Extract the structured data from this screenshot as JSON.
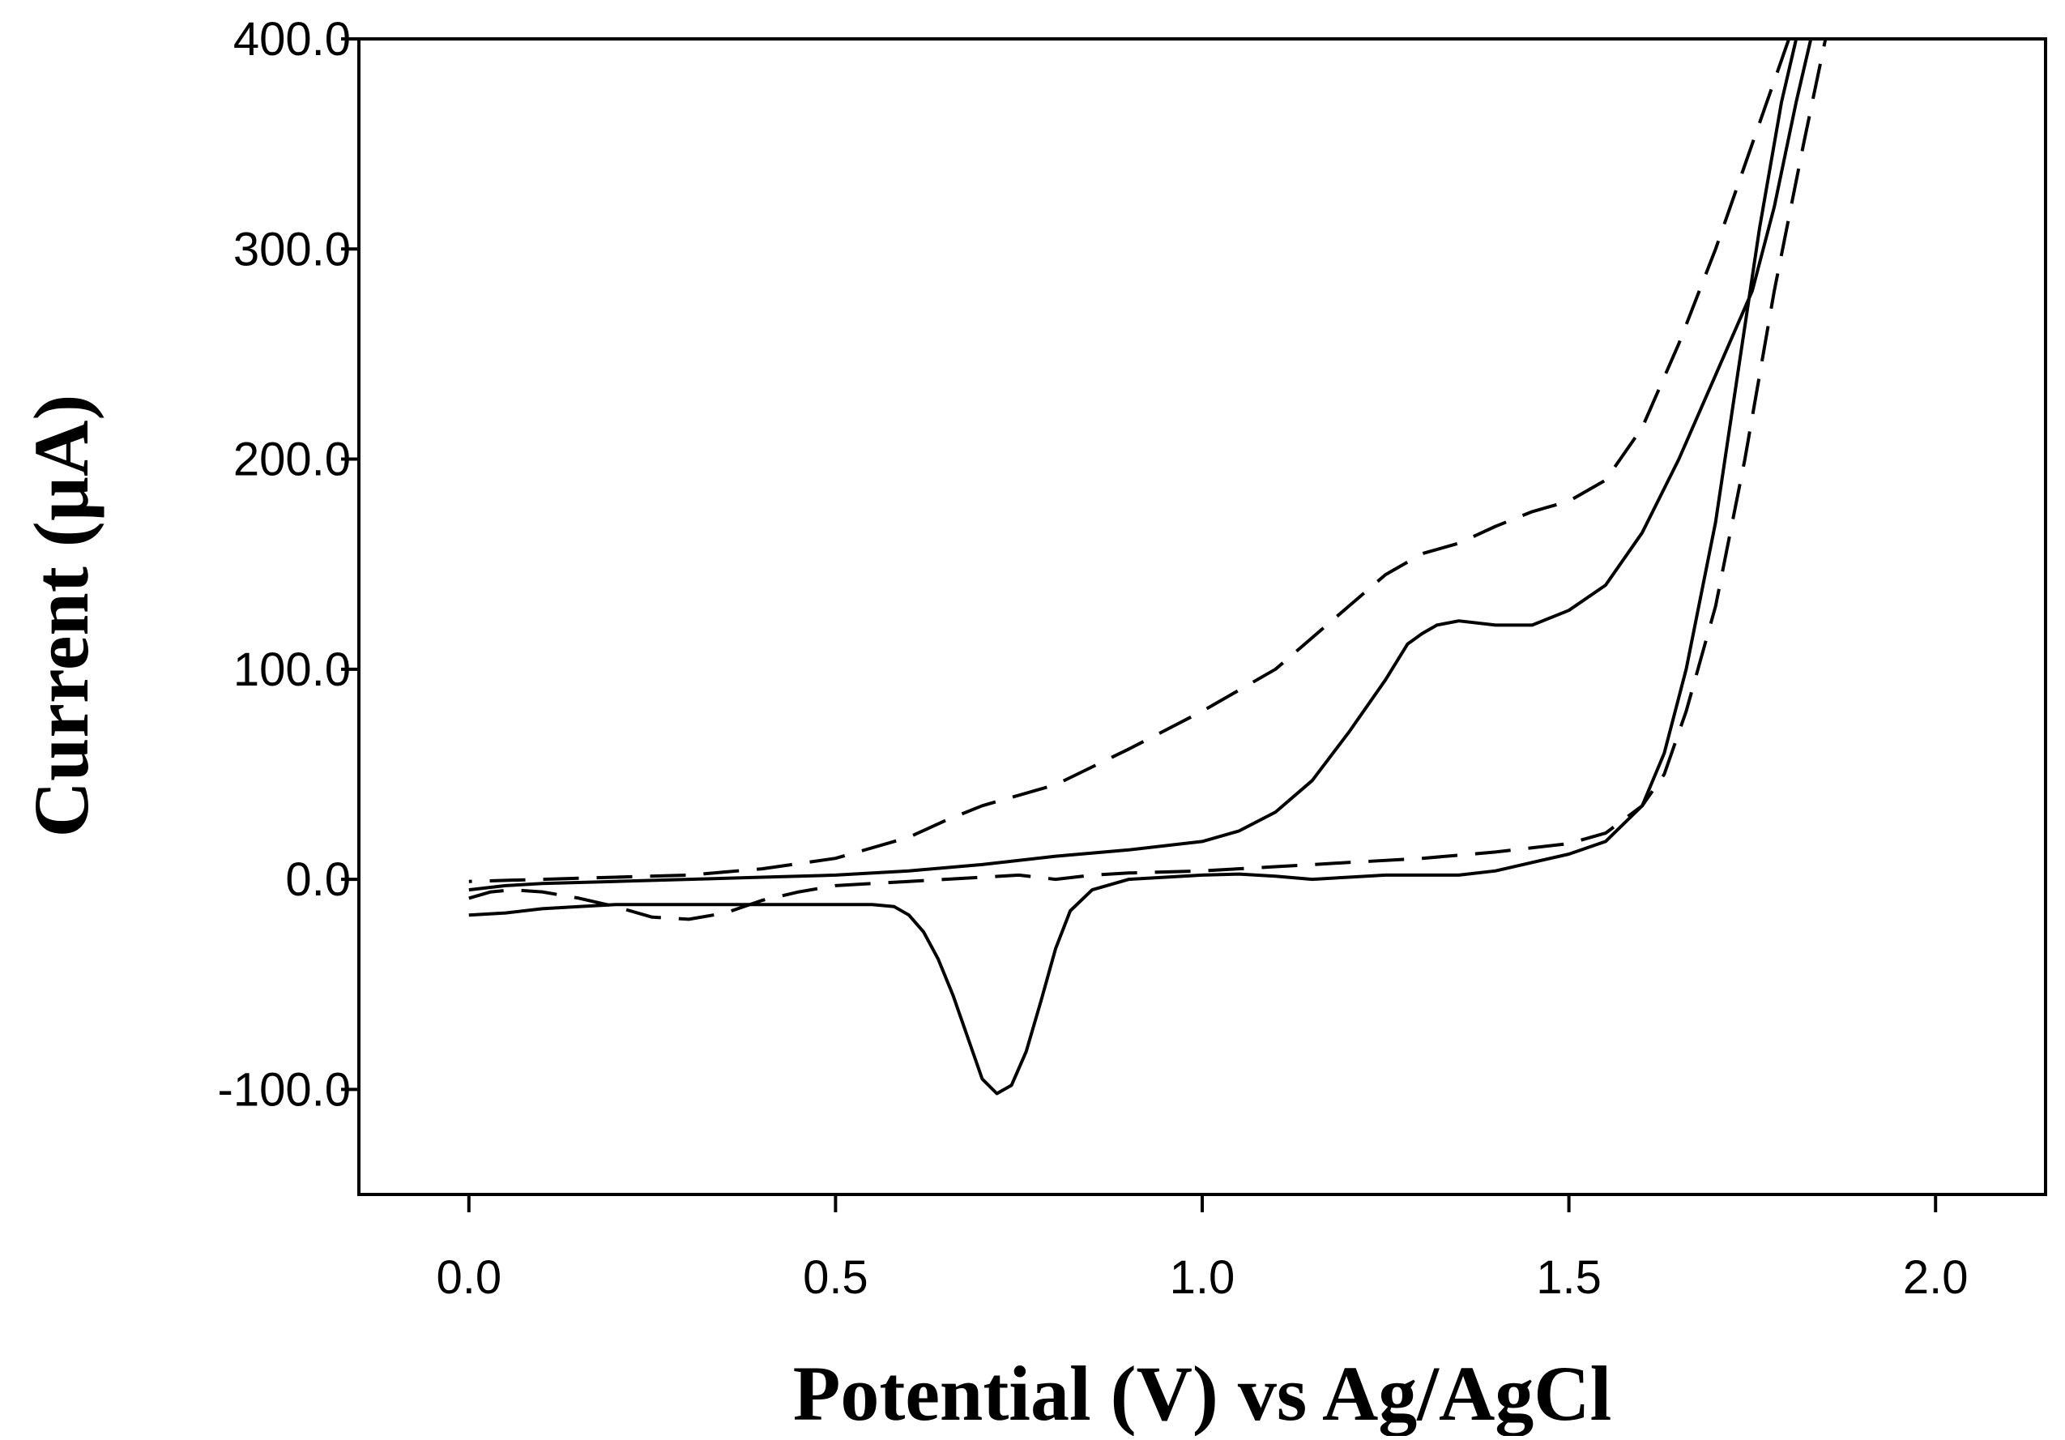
{
  "chart_data": {
    "type": "line",
    "title": "",
    "xlabel": "Potential (V) vs Ag/AgCl",
    "ylabel": "Current (µA)",
    "xlim": [
      -0.15,
      2.15
    ],
    "ylim": [
      -150,
      400
    ],
    "x_ticks": [
      0.0,
      0.5,
      1.0,
      1.5,
      2.0
    ],
    "x_tick_labels": [
      "0.0",
      "0.5",
      "1.0",
      "1.5",
      "2.0"
    ],
    "y_ticks": [
      -100,
      0,
      100,
      200,
      300,
      400
    ],
    "y_tick_labels": [
      "-100.0",
      "0.0",
      "100.0",
      "200.0",
      "300.0",
      "400.0"
    ],
    "grid": false,
    "legend": "none",
    "series": [
      {
        "name": "solid",
        "style": "solid",
        "color": "#000000",
        "points": [
          [
            0.0,
            -17
          ],
          [
            0.05,
            -16
          ],
          [
            0.1,
            -14
          ],
          [
            0.15,
            -13
          ],
          [
            0.2,
            -12
          ],
          [
            0.3,
            -12
          ],
          [
            0.4,
            -12
          ],
          [
            0.5,
            -12
          ],
          [
            0.55,
            -12
          ],
          [
            0.58,
            -13
          ],
          [
            0.6,
            -17
          ],
          [
            0.62,
            -25
          ],
          [
            0.64,
            -38
          ],
          [
            0.66,
            -55
          ],
          [
            0.68,
            -75
          ],
          [
            0.7,
            -95
          ],
          [
            0.72,
            -102
          ],
          [
            0.74,
            -98
          ],
          [
            0.76,
            -82
          ],
          [
            0.78,
            -58
          ],
          [
            0.8,
            -33
          ],
          [
            0.82,
            -15
          ],
          [
            0.85,
            -5
          ],
          [
            0.9,
            0
          ],
          [
            0.95,
            1
          ],
          [
            1.0,
            2
          ],
          [
            1.05,
            2.5
          ],
          [
            1.1,
            1.5
          ],
          [
            1.15,
            0
          ],
          [
            1.2,
            1
          ],
          [
            1.25,
            2
          ],
          [
            1.3,
            2
          ],
          [
            1.35,
            2
          ],
          [
            1.4,
            4
          ],
          [
            1.45,
            8
          ],
          [
            1.5,
            12
          ],
          [
            1.55,
            18
          ],
          [
            1.6,
            35
          ],
          [
            1.63,
            60
          ],
          [
            1.66,
            100
          ],
          [
            1.7,
            170
          ],
          [
            1.73,
            240
          ],
          [
            1.76,
            310
          ],
          [
            1.79,
            370
          ],
          [
            1.81,
            400
          ],
          [
            null,
            null
          ],
          [
            1.83,
            400
          ],
          [
            1.81,
            370
          ],
          [
            1.78,
            320
          ],
          [
            1.75,
            280
          ],
          [
            1.7,
            240
          ],
          [
            1.65,
            200
          ],
          [
            1.6,
            165
          ],
          [
            1.55,
            140
          ],
          [
            1.5,
            128
          ],
          [
            1.45,
            121
          ],
          [
            1.4,
            121
          ],
          [
            1.35,
            123
          ],
          [
            1.32,
            121
          ],
          [
            1.3,
            117
          ],
          [
            1.28,
            112
          ],
          [
            1.25,
            95
          ],
          [
            1.2,
            70
          ],
          [
            1.15,
            47
          ],
          [
            1.1,
            32
          ],
          [
            1.05,
            23
          ],
          [
            1.0,
            18
          ],
          [
            0.9,
            14
          ],
          [
            0.8,
            11
          ],
          [
            0.7,
            7
          ],
          [
            0.6,
            4
          ],
          [
            0.5,
            2
          ],
          [
            0.4,
            1
          ],
          [
            0.3,
            0
          ],
          [
            0.2,
            -1
          ],
          [
            0.1,
            -2
          ],
          [
            0.05,
            -3
          ],
          [
            0.0,
            -5
          ]
        ]
      },
      {
        "name": "dashed",
        "style": "dashed",
        "color": "#000000",
        "points": [
          [
            0.0,
            -9
          ],
          [
            0.03,
            -6
          ],
          [
            0.06,
            -5
          ],
          [
            0.1,
            -6
          ],
          [
            0.15,
            -9
          ],
          [
            0.2,
            -13
          ],
          [
            0.25,
            -18
          ],
          [
            0.3,
            -19
          ],
          [
            0.35,
            -16
          ],
          [
            0.4,
            -10
          ],
          [
            0.45,
            -6
          ],
          [
            0.5,
            -3
          ],
          [
            0.6,
            -1
          ],
          [
            0.7,
            1
          ],
          [
            0.75,
            2
          ],
          [
            0.8,
            0
          ],
          [
            0.85,
            2
          ],
          [
            0.9,
            3
          ],
          [
            1.0,
            4
          ],
          [
            1.1,
            6
          ],
          [
            1.2,
            8
          ],
          [
            1.3,
            10
          ],
          [
            1.4,
            13
          ],
          [
            1.5,
            17
          ],
          [
            1.55,
            22
          ],
          [
            1.6,
            35
          ],
          [
            1.63,
            50
          ],
          [
            1.66,
            80
          ],
          [
            1.7,
            130
          ],
          [
            1.74,
            200
          ],
          [
            1.78,
            280
          ],
          [
            1.82,
            350
          ],
          [
            1.85,
            400
          ],
          [
            null,
            null
          ],
          [
            1.8,
            400
          ],
          [
            1.78,
            380
          ],
          [
            1.75,
            350
          ],
          [
            1.7,
            300
          ],
          [
            1.65,
            255
          ],
          [
            1.6,
            215
          ],
          [
            1.55,
            190
          ],
          [
            1.5,
            180
          ],
          [
            1.45,
            175
          ],
          [
            1.4,
            168
          ],
          [
            1.35,
            160
          ],
          [
            1.3,
            155
          ],
          [
            1.25,
            145
          ],
          [
            1.2,
            130
          ],
          [
            1.15,
            115
          ],
          [
            1.1,
            100
          ],
          [
            1.0,
            80
          ],
          [
            0.9,
            62
          ],
          [
            0.8,
            45
          ],
          [
            0.7,
            35
          ],
          [
            0.65,
            28
          ],
          [
            0.6,
            20
          ],
          [
            0.5,
            10
          ],
          [
            0.4,
            5
          ],
          [
            0.3,
            2
          ],
          [
            0.2,
            1
          ],
          [
            0.1,
            0
          ],
          [
            0.0,
            -1
          ]
        ]
      }
    ]
  }
}
